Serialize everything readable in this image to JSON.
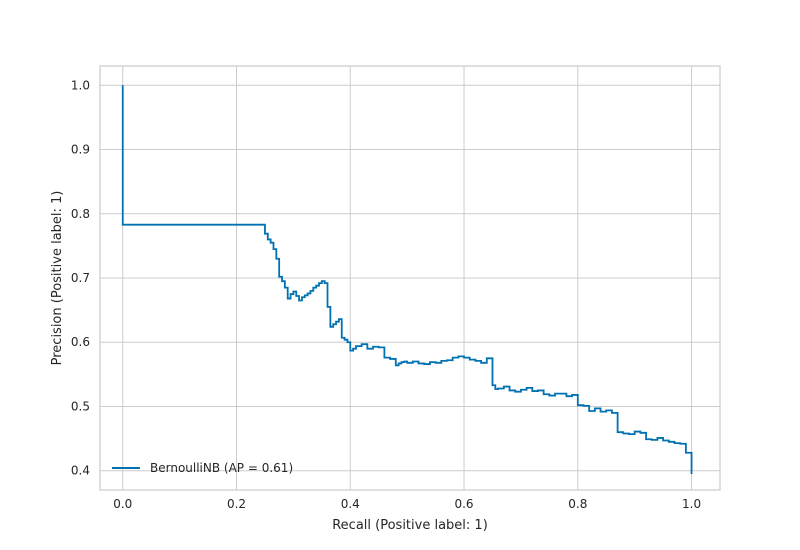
{
  "chart_data": {
    "type": "line",
    "step": "post",
    "xlabel": "Recall (Positive label: 1)",
    "ylabel": "Precision (Positive label: 1)",
    "xlim": [
      -0.04,
      1.05
    ],
    "ylim": [
      0.37,
      1.03
    ],
    "xticks": [
      0.0,
      0.2,
      0.4,
      0.6,
      0.8,
      1.0
    ],
    "xtick_labels": [
      "0.0",
      "0.2",
      "0.4",
      "0.6",
      "0.8",
      "1.0"
    ],
    "yticks": [
      0.4,
      0.5,
      0.6,
      0.7,
      0.8,
      0.9,
      1.0
    ],
    "ytick_labels": [
      "0.4",
      "0.5",
      "0.6",
      "0.7",
      "0.8",
      "0.9",
      "1.0"
    ],
    "grid": true,
    "legend_position": "lower-left",
    "series": [
      {
        "name": "BernoulliNB (AP = 0.61)",
        "color": "#0072b2",
        "x": [
          0.0,
          0.0,
          0.25,
          0.255,
          0.26,
          0.265,
          0.27,
          0.275,
          0.28,
          0.285,
          0.29,
          0.295,
          0.3,
          0.305,
          0.31,
          0.315,
          0.32,
          0.325,
          0.33,
          0.335,
          0.34,
          0.345,
          0.35,
          0.355,
          0.36,
          0.365,
          0.37,
          0.375,
          0.38,
          0.385,
          0.39,
          0.395,
          0.4,
          0.405,
          0.41,
          0.415,
          0.42,
          0.43,
          0.44,
          0.45,
          0.46,
          0.47,
          0.48,
          0.485,
          0.49,
          0.495,
          0.5,
          0.51,
          0.52,
          0.53,
          0.54,
          0.55,
          0.56,
          0.57,
          0.58,
          0.59,
          0.6,
          0.61,
          0.62,
          0.63,
          0.64,
          0.65,
          0.655,
          0.66,
          0.67,
          0.68,
          0.69,
          0.7,
          0.71,
          0.72,
          0.73,
          0.74,
          0.75,
          0.76,
          0.77,
          0.78,
          0.79,
          0.8,
          0.81,
          0.82,
          0.83,
          0.84,
          0.85,
          0.86,
          0.865,
          0.87,
          0.88,
          0.89,
          0.9,
          0.91,
          0.92,
          0.93,
          0.94,
          0.95,
          0.96,
          0.97,
          0.98,
          0.99,
          1.0
        ],
        "y": [
          1.0,
          0.783,
          0.769,
          0.76,
          0.755,
          0.745,
          0.73,
          0.702,
          0.695,
          0.685,
          0.668,
          0.675,
          0.679,
          0.672,
          0.665,
          0.67,
          0.673,
          0.676,
          0.68,
          0.685,
          0.688,
          0.692,
          0.695,
          0.692,
          0.655,
          0.624,
          0.628,
          0.632,
          0.636,
          0.607,
          0.604,
          0.6,
          0.587,
          0.59,
          0.594,
          0.594,
          0.597,
          0.59,
          0.593,
          0.592,
          0.576,
          0.574,
          0.564,
          0.567,
          0.569,
          0.57,
          0.568,
          0.57,
          0.567,
          0.566,
          0.569,
          0.568,
          0.571,
          0.572,
          0.576,
          0.578,
          0.576,
          0.573,
          0.571,
          0.568,
          0.575,
          0.533,
          0.527,
          0.528,
          0.531,
          0.525,
          0.523,
          0.526,
          0.529,
          0.524,
          0.525,
          0.519,
          0.517,
          0.52,
          0.52,
          0.516,
          0.518,
          0.502,
          0.501,
          0.493,
          0.497,
          0.492,
          0.494,
          0.49,
          0.49,
          0.46,
          0.458,
          0.457,
          0.461,
          0.459,
          0.449,
          0.448,
          0.451,
          0.447,
          0.445,
          0.443,
          0.442,
          0.428,
          0.395
        ]
      }
    ]
  }
}
